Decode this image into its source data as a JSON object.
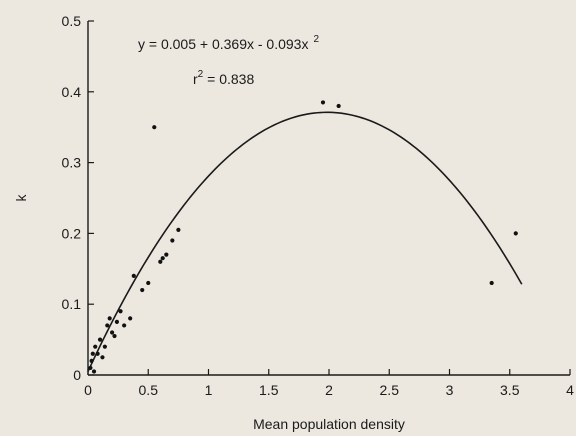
{
  "chart_data": {
    "type": "scatter",
    "title": "",
    "xlabel": "Mean population density",
    "ylabel": "k",
    "xlim": [
      0,
      4
    ],
    "ylim": [
      0,
      0.5
    ],
    "x_ticks": [
      0,
      0.5,
      1,
      1.5,
      2,
      2.5,
      3,
      3.5,
      4
    ],
    "x_tick_labels": [
      "0",
      "0.5",
      "1",
      "1.5",
      "2",
      "2.5",
      "3",
      "3.5",
      "4"
    ],
    "y_ticks": [
      0,
      0.1,
      0.2,
      0.3,
      0.4,
      0.5
    ],
    "y_tick_labels": [
      "0",
      "0.1",
      "0.2",
      "0.3",
      "0.4",
      "0.5"
    ],
    "grid": false,
    "points": {
      "x": [
        0.02,
        0.03,
        0.04,
        0.05,
        0.06,
        0.08,
        0.1,
        0.12,
        0.14,
        0.16,
        0.18,
        0.2,
        0.22,
        0.24,
        0.27,
        0.3,
        0.35,
        0.38,
        0.45,
        0.5,
        0.55,
        0.6,
        0.62,
        0.65,
        0.7,
        0.75,
        1.95,
        2.08,
        3.35,
        3.55
      ],
      "y": [
        0.01,
        0.02,
        0.03,
        0.005,
        0.04,
        0.03,
        0.05,
        0.025,
        0.04,
        0.07,
        0.08,
        0.06,
        0.055,
        0.075,
        0.09,
        0.07,
        0.08,
        0.14,
        0.12,
        0.13,
        0.35,
        0.16,
        0.165,
        0.17,
        0.19,
        0.205,
        0.385,
        0.38,
        0.13,
        0.2
      ]
    },
    "fit": {
      "intercept": 0.005,
      "linear": 0.369,
      "quadratic": -0.093,
      "x_range": [
        0,
        3.6
      ]
    },
    "annotations": {
      "equation": "y = 0.005 + 0.369x - 0.093x",
      "equation_exponent": "2",
      "r_squared_label": "r",
      "r_squared_exponent": "2",
      "r_squared_value": " = 0.838"
    }
  }
}
